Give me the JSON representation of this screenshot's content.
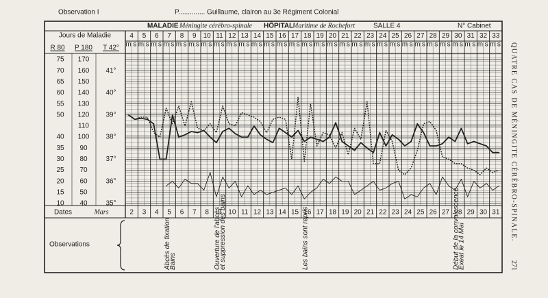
{
  "page": {
    "header": {
      "observation": "Observation I",
      "patient": "P.............. Guillaume, clairon au 3e Régiment Colonial"
    },
    "chart_info": {
      "maladie_label": "MALADIE",
      "maladie": "Méningite cérébro-spinale",
      "hopital_label": "HÔPITAL",
      "hopital": "Maritime de Rochefort",
      "salle": "SALLE 4",
      "cabinet": "N° Cabinet"
    },
    "sheet": {
      "days_label": "Jours de Maladie",
      "days": [
        4,
        5,
        6,
        7,
        8,
        9,
        10,
        11,
        12,
        13,
        14,
        15,
        16,
        17,
        18,
        19,
        20,
        21,
        22,
        23,
        24,
        25,
        26,
        27,
        28,
        29,
        30,
        31,
        32,
        33
      ],
      "half_days": [
        "m",
        "s"
      ],
      "scale_header": [
        "R 80",
        "P 180",
        "T 42°"
      ],
      "r_labels": [
        75,
        70,
        65,
        60,
        55,
        50,
        null,
        40,
        35,
        30,
        25,
        20,
        15,
        10
      ],
      "p_labels": [
        170,
        160,
        150,
        140,
        130,
        120,
        110,
        100,
        90,
        80,
        70,
        60,
        50,
        40
      ],
      "t_labels": [
        null,
        {
          "value": 41,
          "label": "41°"
        },
        null,
        {
          "value": 40,
          "label": "40°"
        },
        null,
        {
          "value": 39,
          "label": "39°"
        },
        null,
        {
          "value": 38,
          "label": "38°"
        },
        null,
        {
          "value": 37,
          "label": "37°"
        },
        null,
        {
          "value": 36,
          "label": "36°"
        },
        null,
        {
          "value": 35,
          "label": "35°"
        }
      ],
      "dates_label": "Dates",
      "month": "Mars",
      "dates": [
        2,
        3,
        4,
        5,
        6,
        7,
        8,
        9,
        10,
        11,
        12,
        13,
        14,
        15,
        16,
        17,
        18,
        19,
        20,
        21,
        22,
        23,
        24,
        25,
        26,
        27,
        28,
        29,
        30,
        31
      ],
      "observations_label": "Observations",
      "observations": [
        null,
        null,
        null,
        [
          "Abcès de fixation",
          "Bains"
        ],
        null,
        null,
        null,
        [
          "Ouverture de l'abcès",
          "et suppression des bains"
        ],
        null,
        null,
        null,
        null,
        null,
        null,
        [
          "Les bains sont repris"
        ],
        null,
        null,
        null,
        null,
        null,
        null,
        null,
        null,
        null,
        null,
        null,
        [
          "Début de la convalescence",
          "Exeat le 14 Mai"
        ],
        null,
        null,
        null
      ],
      "temperature": [
        39.0,
        38.8,
        38.9,
        38.9,
        38.2,
        38.0,
        39.3,
        38.6,
        39.4,
        38.5,
        39.6,
        38.4,
        38.3,
        38.6,
        38.2,
        39.4,
        38.6,
        38.5,
        39.1,
        39.0,
        38.9,
        38.7,
        38.2,
        38.8,
        38.9,
        38.8,
        37.0,
        39.8,
        36.9,
        39.5,
        37.6,
        38.2,
        38.1,
        37.5,
        38.2,
        37.2,
        38.4,
        37.9,
        39.6,
        36.8,
        36.8,
        38.3,
        37.8,
        36.5,
        36.3,
        36.6,
        37.4,
        38.6,
        38.7,
        38.3,
        37.1,
        37.0,
        36.8,
        36.8,
        36.6,
        36.5,
        36.3,
        36.6,
        36.4,
        36.5
      ],
      "pulse": [
        120,
        116,
        117,
        116,
        112,
        80,
        80,
        120,
        100,
        102,
        105,
        104,
        106,
        100,
        95,
        105,
        108,
        103,
        100,
        100,
        110,
        102,
        98,
        95,
        108,
        104,
        100,
        106,
        96,
        100,
        98,
        96,
        100,
        113,
        96,
        92,
        88,
        95,
        90,
        86,
        104,
        92,
        102,
        98,
        92,
        96,
        112,
        104,
        92,
        92,
        94,
        100,
        96,
        108,
        94,
        96,
        94,
        92,
        86,
        86
      ],
      "respiration": [
        null,
        null,
        null,
        null,
        null,
        null,
        18,
        20,
        17,
        21,
        19,
        19,
        16,
        24,
        13,
        22,
        17,
        20,
        13,
        18,
        14,
        16,
        14,
        15,
        16,
        17,
        14,
        18,
        12,
        15,
        17,
        21,
        19,
        22,
        20,
        20,
        14,
        16,
        18,
        20,
        16,
        17,
        19,
        20,
        12,
        14,
        13,
        17,
        19,
        14,
        22,
        18,
        16,
        21,
        13,
        20,
        17,
        19,
        16,
        18
      ]
    },
    "running_title": "QUATRE CAS DE MÉNINGITE CÉRÉBRO-SPINALE.",
    "page_number": 271
  }
}
